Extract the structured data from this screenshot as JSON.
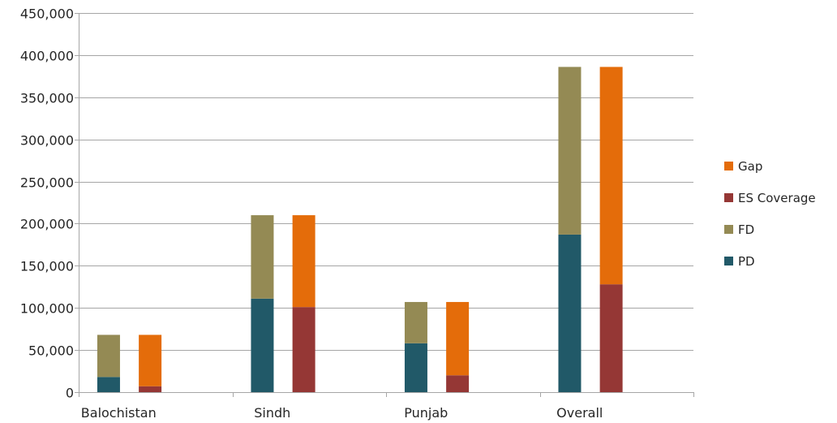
{
  "chart_data": {
    "type": "bar",
    "stacked": true,
    "categories": [
      "Balochistan",
      "Sindh",
      "Punjab",
      "Overall"
    ],
    "ylim": [
      0,
      450000
    ],
    "y_ticks": [
      0,
      50000,
      100000,
      150000,
      200000,
      250000,
      300000,
      350000,
      400000,
      450000
    ],
    "y_tick_labels": [
      "0",
      "50,000",
      "100,000",
      "150,000",
      "200,000",
      "250,000",
      "300,000",
      "350,000",
      "400,000",
      "450,000"
    ],
    "grid": true,
    "legend_position": "right",
    "stacks": [
      {
        "series": [
          {
            "name": "PD",
            "color": "#215968",
            "values": [
              18000,
              111000,
              58000,
              187000
            ]
          },
          {
            "name": "FD",
            "color": "#948a54",
            "values": [
              50000,
              99000,
              49000,
              199000
            ]
          }
        ]
      },
      {
        "series": [
          {
            "name": "ES Coverage",
            "color": "#953735",
            "values": [
              7000,
              101000,
              20000,
              128000
            ]
          },
          {
            "name": "Gap",
            "color": "#e46c0a",
            "values": [
              61000,
              109000,
              87000,
              258000
            ]
          }
        ]
      }
    ],
    "legend": [
      {
        "name": "Gap",
        "color": "#e46c0a"
      },
      {
        "name": "ES Coverage",
        "color": "#953735"
      },
      {
        "name": "FD",
        "color": "#948a54"
      },
      {
        "name": "PD",
        "color": "#215968"
      }
    ]
  }
}
